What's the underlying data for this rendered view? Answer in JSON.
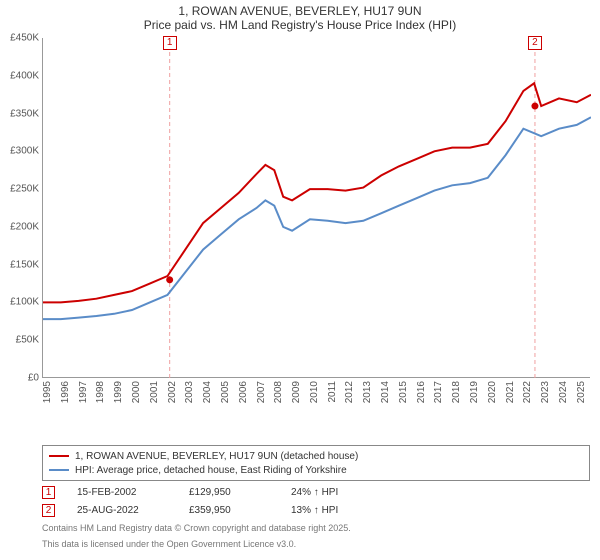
{
  "title": {
    "line1": "1, ROWAN AVENUE, BEVERLEY, HU17 9UN",
    "line2": "Price paid vs. HM Land Registry's House Price Index (HPI)"
  },
  "chart": {
    "type": "line",
    "background_color": "#ffffff",
    "grid_color": "#cccccc",
    "axis_color": "#999999",
    "xlim": [
      1995,
      2025.8
    ],
    "ylim": [
      0,
      450000
    ],
    "ytick_step": 50000,
    "yticks": [
      "£0",
      "£50K",
      "£100K",
      "£150K",
      "£200K",
      "£250K",
      "£300K",
      "£350K",
      "£400K",
      "£450K"
    ],
    "xticks": [
      "1995",
      "1996",
      "1997",
      "1998",
      "1999",
      "2000",
      "2001",
      "2002",
      "2003",
      "2004",
      "2005",
      "2006",
      "2007",
      "2008",
      "2009",
      "2010",
      "2011",
      "2012",
      "2013",
      "2014",
      "2015",
      "2016",
      "2017",
      "2018",
      "2019",
      "2020",
      "2021",
      "2022",
      "2023",
      "2024",
      "2025"
    ],
    "series": [
      {
        "name": "1, ROWAN AVENUE, BEVERLEY, HU17 9UN (detached house)",
        "color": "#cc0000",
        "line_width": 2,
        "x": [
          1995,
          1996,
          1997,
          1998,
          1999,
          2000,
          2001,
          2002,
          2003,
          2004,
          2005,
          2006,
          2007,
          2007.5,
          2008,
          2008.5,
          2009,
          2010,
          2011,
          2012,
          2013,
          2014,
          2015,
          2016,
          2017,
          2018,
          2019,
          2020,
          2021,
          2022,
          2022.6,
          2023,
          2024,
          2025,
          2025.8
        ],
        "y": [
          100000,
          100000,
          102000,
          105000,
          110000,
          115000,
          125000,
          135000,
          170000,
          205000,
          225000,
          245000,
          270000,
          282000,
          275000,
          240000,
          235000,
          250000,
          250000,
          248000,
          252000,
          268000,
          280000,
          290000,
          300000,
          305000,
          305000,
          310000,
          340000,
          380000,
          390000,
          360000,
          370000,
          365000,
          375000
        ]
      },
      {
        "name": "HPI: Average price, detached house, East Riding of Yorkshire",
        "color": "#5a8cc8",
        "line_width": 2,
        "x": [
          1995,
          1996,
          1997,
          1998,
          1999,
          2000,
          2001,
          2002,
          2003,
          2004,
          2005,
          2006,
          2007,
          2007.5,
          2008,
          2008.5,
          2009,
          2010,
          2011,
          2012,
          2013,
          2014,
          2015,
          2016,
          2017,
          2018,
          2019,
          2020,
          2021,
          2022,
          2023,
          2024,
          2025,
          2025.8
        ],
        "y": [
          78000,
          78000,
          80000,
          82000,
          85000,
          90000,
          100000,
          110000,
          140000,
          170000,
          190000,
          210000,
          225000,
          235000,
          228000,
          200000,
          195000,
          210000,
          208000,
          205000,
          208000,
          218000,
          228000,
          238000,
          248000,
          255000,
          258000,
          265000,
          295000,
          330000,
          320000,
          330000,
          335000,
          345000
        ]
      }
    ],
    "markers": [
      {
        "id": "1",
        "x": 2002.12,
        "y": 129950,
        "color": "#cc0000",
        "vline_color": "#f0a0a0"
      },
      {
        "id": "2",
        "x": 2022.65,
        "y": 359950,
        "color": "#cc0000",
        "vline_color": "#f0a0a0"
      }
    ]
  },
  "legend": {
    "items": [
      {
        "label": "1, ROWAN AVENUE, BEVERLEY, HU17 9UN (detached house)",
        "color": "#cc0000"
      },
      {
        "label": "HPI: Average price, detached house, East Riding of Yorkshire",
        "color": "#5a8cc8"
      }
    ]
  },
  "footer": {
    "rows": [
      {
        "id": "1",
        "date": "15-FEB-2002",
        "price": "£129,950",
        "delta": "24% ↑ HPI"
      },
      {
        "id": "2",
        "date": "25-AUG-2022",
        "price": "£359,950",
        "delta": "13% ↑ HPI"
      }
    ],
    "footnote1": "Contains HM Land Registry data © Crown copyright and database right 2025.",
    "footnote2": "This data is licensed under the Open Government Licence v3.0."
  }
}
